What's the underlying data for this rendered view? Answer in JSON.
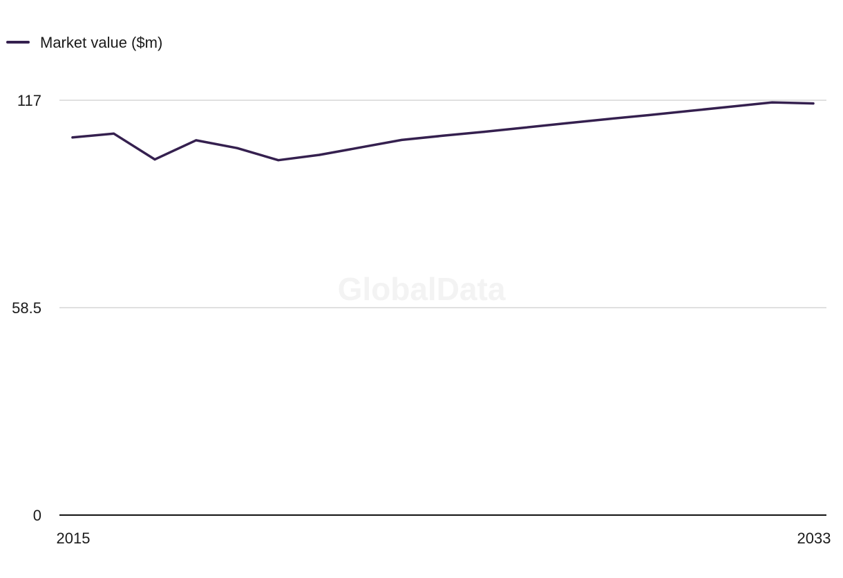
{
  "chart_data": {
    "type": "line",
    "title": "",
    "xlabel": "",
    "ylabel": "",
    "x": [
      2015,
      2016,
      2017,
      2018,
      2019,
      2020,
      2021,
      2022,
      2023,
      2024,
      2025,
      2026,
      2027,
      2028,
      2029,
      2030,
      2031,
      2032,
      2033
    ],
    "series": [
      {
        "name": "Market value ($m)",
        "color": "#35204f",
        "values": [
          106.5,
          107.6,
          100.3,
          105.7,
          103.5,
          100.1,
          101.6,
          103.7,
          105.8,
          107.0,
          108.1,
          109.3,
          110.5,
          111.7,
          112.8,
          114.0,
          115.2,
          116.4,
          116.1
        ]
      }
    ],
    "ylim": [
      0,
      117
    ],
    "yticks": [
      "0",
      "58.5",
      "117"
    ],
    "xticks": [
      "2015",
      "2033"
    ],
    "grid": true,
    "legend_position": "top-left",
    "watermark": "GlobalData"
  }
}
